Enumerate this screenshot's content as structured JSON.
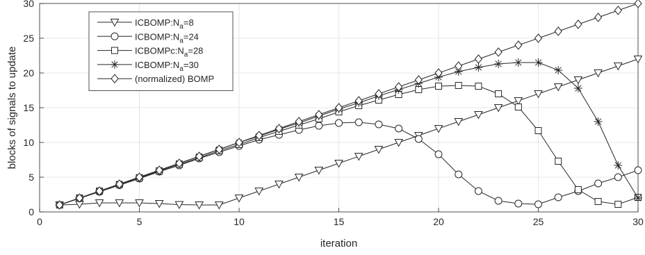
{
  "chart_data": {
    "type": "line",
    "xlabel": "iteration",
    "ylabel": "blocks of signals to update",
    "xlim": [
      0,
      30
    ],
    "ylim": [
      0,
      30
    ],
    "xticks": [
      0,
      5,
      10,
      15,
      20,
      25,
      30
    ],
    "yticks": [
      0,
      5,
      10,
      15,
      20,
      25,
      30
    ],
    "grid": true,
    "legend_position": "top-left",
    "x": [
      1,
      2,
      3,
      4,
      5,
      6,
      7,
      8,
      9,
      10,
      11,
      12,
      13,
      14,
      15,
      16,
      17,
      18,
      19,
      20,
      21,
      22,
      23,
      24,
      25,
      26,
      27,
      28,
      29,
      30
    ],
    "series": [
      {
        "name": "ICBOMP:N_a=8",
        "legend": {
          "pre": "ICBOMP:N",
          "sub": "a",
          "post": "=8"
        },
        "marker": "triangle-down",
        "values": [
          1.0,
          1.1,
          1.3,
          1.3,
          1.3,
          1.2,
          1.05,
          1.0,
          1.0,
          2.0,
          3.0,
          4.0,
          5.0,
          6.0,
          7.0,
          8.0,
          9.0,
          10.0,
          11.0,
          12.0,
          13.0,
          14.0,
          15.0,
          16.0,
          17.0,
          18.0,
          19.0,
          20.0,
          21.0,
          22.0
        ]
      },
      {
        "name": "ICBOMP:N_a=24",
        "legend": {
          "pre": "ICBOMP:N",
          "sub": "a",
          "post": "=24"
        },
        "marker": "circle",
        "values": [
          1.0,
          1.95,
          2.9,
          3.85,
          4.8,
          5.8,
          6.7,
          7.7,
          8.6,
          9.5,
          10.4,
          11.1,
          11.8,
          12.4,
          12.8,
          12.9,
          12.6,
          12.0,
          10.5,
          8.3,
          5.4,
          3.0,
          1.6,
          1.2,
          1.1,
          2.1,
          3.0,
          4.1,
          5.0,
          6.0
        ]
      },
      {
        "name": "ICBOMPc:N_a=28",
        "legend": {
          "pre": "ICBOMPc:N",
          "sub": "a",
          "post": "=28"
        },
        "marker": "square",
        "values": [
          1.0,
          2.0,
          3.0,
          3.95,
          4.9,
          5.9,
          6.85,
          7.8,
          8.8,
          9.7,
          10.7,
          11.6,
          12.5,
          13.4,
          14.4,
          15.3,
          16.1,
          16.9,
          17.6,
          18.1,
          18.2,
          18.1,
          17.0,
          15.1,
          11.7,
          7.3,
          3.2,
          1.5,
          1.1,
          2.1
        ]
      },
      {
        "name": "ICBOMP:N_a=30",
        "legend": {
          "pre": "ICBOMP:N",
          "sub": "a",
          "post": "=30"
        },
        "marker": "asterisk",
        "values": [
          1.0,
          2.0,
          3.0,
          4.0,
          5.0,
          6.0,
          7.0,
          8.0,
          9.0,
          10.0,
          10.9,
          11.9,
          12.8,
          13.8,
          14.8,
          15.7,
          16.7,
          17.6,
          18.5,
          19.4,
          20.2,
          20.8,
          21.3,
          21.5,
          21.5,
          20.4,
          17.8,
          13.0,
          6.7,
          2.0
        ]
      },
      {
        "name": "(normalized) BOMP",
        "legend": {
          "pre": "(normalized) BOMP",
          "sub": "",
          "post": ""
        },
        "marker": "diamond",
        "values": [
          1,
          2,
          3,
          4,
          5,
          6,
          7,
          8,
          9,
          10,
          11,
          12,
          13,
          14,
          15,
          16,
          17,
          18,
          19,
          20,
          21,
          22,
          23,
          24,
          25,
          26,
          27,
          28,
          29,
          30
        ]
      }
    ]
  }
}
